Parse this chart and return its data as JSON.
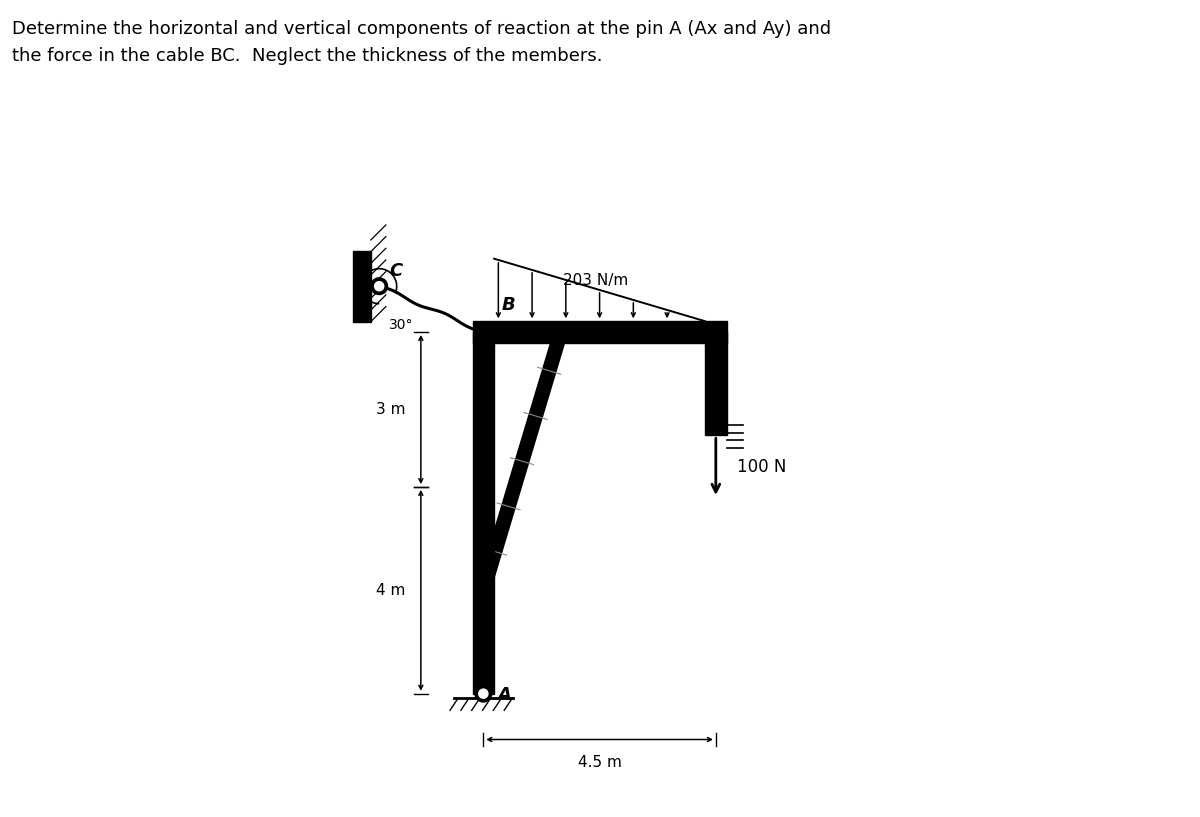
{
  "title_text": "Determine the horizontal and vertical components of reaction at the pin A (Ax and Ay) and\nthe force in the cable BC.  Neglect the thickness of the members.",
  "title_fontsize": 13,
  "bg_color": "#ffffff",
  "label_3m": "3 m",
  "label_4m": "4 m",
  "label_45m": "4.5 m",
  "label_203": "203 N/m",
  "label_100N": "100 N",
  "label_30deg": "30°",
  "label_B": "B",
  "label_C": "C",
  "label_A": "A",
  "structure_color": "#000000"
}
